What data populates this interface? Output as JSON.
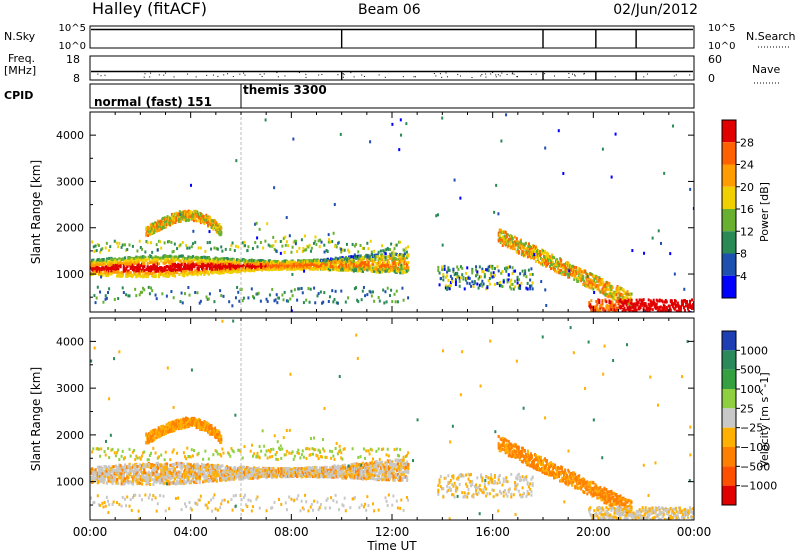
{
  "header": {
    "station": "Halley (fitACF)",
    "beam": "Beam 06",
    "date": "02/Jun/2012"
  },
  "top_panels": {
    "nsky_label": "N.Sky",
    "nsky_ticks": [
      "10^5",
      "10^0"
    ],
    "nsky_right_ticks": [
      "10^5",
      "10^0"
    ],
    "nsearch_label": "N.Search",
    "freq_label_1": "Freq.",
    "freq_label_2": "[MHz]",
    "freq_ticks": [
      "18",
      "8"
    ],
    "nave_ticks": [
      "60",
      "0"
    ],
    "nave_label": "Nave",
    "cpid_label": "CPID",
    "cpid_segments": [
      {
        "label": "normal (fast) 151",
        "start_hour": 0.0
      },
      {
        "label": "themis 3300",
        "start_hour": 6.0
      }
    ],
    "markers_hours": [
      10.0,
      18.0,
      20.1,
      21.7
    ]
  },
  "chart_data": [
    {
      "type": "heatmap",
      "panel": "power",
      "xlabel": "",
      "ylabel": "Slant Range [km]",
      "xlim": [
        0,
        24
      ],
      "ylim": [
        180,
        4500
      ],
      "y_ticks": [
        "4000",
        "3000",
        "2000",
        "1000"
      ],
      "colorbar": {
        "label": "Power [dB]",
        "ticks": [
          "28",
          "24",
          "20",
          "16",
          "12",
          "8",
          "4"
        ],
        "colors": [
          "#e00000",
          "#ff6000",
          "#ff9c00",
          "#f0d000",
          "#68b030",
          "#2a8a56",
          "#1e50b0",
          "#0000ff"
        ]
      },
      "features": [
        {
          "name": "main echo band",
          "t_start": 0.0,
          "t_end": 12.5,
          "range_start": 1250,
          "range_end": 1150
        },
        {
          "name": "upper arc",
          "t_start": 2.2,
          "t_end": 5.2,
          "range_peak": 2300
        },
        {
          "name": "afternoon patch",
          "t_start": 14.0,
          "t_end": 17.5,
          "range": 800
        },
        {
          "name": "descending streak",
          "t_start": 16.2,
          "t_end": 21.5,
          "range_start": 1800,
          "range_end": 400
        },
        {
          "name": "ground band",
          "t_start": 20.0,
          "t_end": 24.0,
          "range": 300
        }
      ]
    },
    {
      "type": "heatmap",
      "panel": "velocity",
      "xlabel": "Time UT",
      "ylabel": "Slant Range [km]",
      "xlim": [
        0,
        24
      ],
      "ylim": [
        180,
        4500
      ],
      "x_ticks": [
        "00:00",
        "04:00",
        "08:00",
        "12:00",
        "16:00",
        "20:00",
        "00:00"
      ],
      "y_ticks": [
        "4000",
        "3000",
        "2000",
        "1000"
      ],
      "colorbar": {
        "label": "Velocity [m s^-1]",
        "ticks": [
          "1000",
          "500",
          "100",
          "25",
          "−25",
          "−100",
          "−500",
          "−1000"
        ],
        "colors": [
          "#1e3fb4",
          "#2a8a5a",
          "#34a040",
          "#8ed040",
          "#c8c8c8",
          "#ffb000",
          "#ff8000",
          "#ff5000",
          "#e00000"
        ]
      },
      "features": [
        {
          "name": "ground scatter band",
          "t_start": 0.0,
          "t_end": 12.5,
          "range_start": 1000,
          "range_end": 1200
        },
        {
          "name": "upper arc",
          "t_start": 2.2,
          "t_end": 5.2,
          "range_peak": 2300
        },
        {
          "name": "descending streak",
          "t_start": 16.2,
          "t_end": 21.5,
          "range_start": 1800,
          "range_end": 400
        }
      ]
    }
  ]
}
